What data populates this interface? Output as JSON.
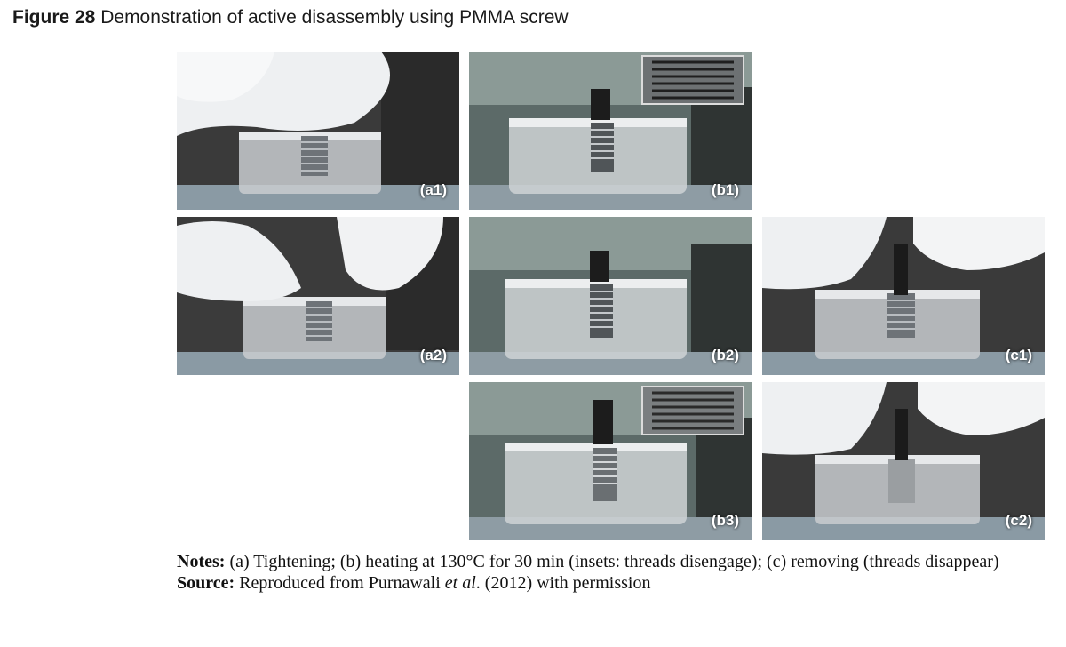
{
  "figure": {
    "label": "Figure 28",
    "title": "Demonstration of active disassembly using PMMA screw"
  },
  "panels": [
    {
      "id": "a1",
      "label": "(a1)"
    },
    {
      "id": "b1",
      "label": "(b1)"
    },
    {
      "id": "a2",
      "label": "(a2)"
    },
    {
      "id": "b2",
      "label": "(b2)"
    },
    {
      "id": "c1",
      "label": "(c1)"
    },
    {
      "id": "b3",
      "label": "(b3)"
    },
    {
      "id": "c2",
      "label": "(c2)"
    }
  ],
  "notes": {
    "notes_heading": "Notes:",
    "notes_text": " (a) Tightening; (b) heating at 130°C for 30 min (insets: threads disengage); (c) removing (threads disappear)",
    "source_heading": "Source:",
    "source_pre": " Reproduced from Purnawali ",
    "source_etal": "et al",
    "source_post": ". (2012) with permission"
  }
}
